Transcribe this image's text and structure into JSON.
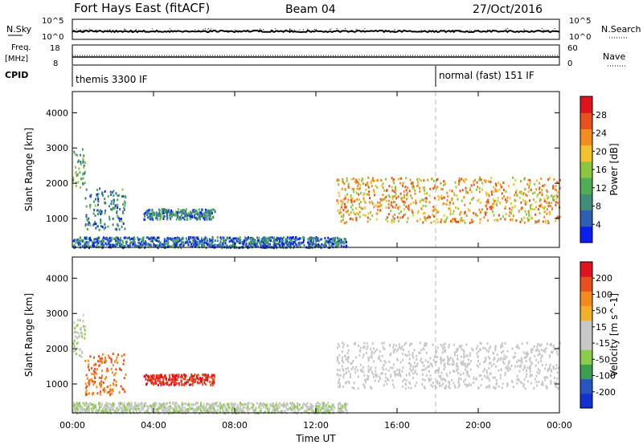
{
  "header": {
    "station": "Fort Hays East (fitACF)",
    "beam": "Beam 04",
    "date": "27/Oct/2016"
  },
  "noise_panel": {
    "left_label": "N.Sky",
    "right_label": "N.Search",
    "tick_top_left": "10^5",
    "tick_bottom_left": "10^0",
    "tick_top_right": "10^5",
    "tick_bottom_right": "10^0"
  },
  "freq_panel": {
    "left_label_1": "Freq.",
    "left_label_2": "[MHz]",
    "right_label": "Nave",
    "left_ticks": [
      "18",
      "8"
    ],
    "right_ticks": [
      "60",
      "0"
    ]
  },
  "cpid_panel": {
    "label": "CPID",
    "mode_1": "themis 3300 IF",
    "mode_2": "normal (fast) 151 IF"
  },
  "colors": {
    "power_scale": [
      "#0a1ef0",
      "#2f5fb3",
      "#3e8e7a",
      "#4fae55",
      "#8cc63f",
      "#f2c12e",
      "#f28c1e",
      "#e8501e",
      "#e0121e"
    ],
    "velocity_scale": [
      "#1430d0",
      "#2a55c0",
      "#3aa050",
      "#8ccc4a",
      "#c8c8c8",
      "#c8c8c8",
      "#f2b02a",
      "#f28a1e",
      "#e8501e",
      "#e0121e"
    ]
  },
  "chart_data": [
    {
      "type": "heatmap",
      "title": "Power",
      "xlabel": "",
      "ylabel": "Slant Range [km]",
      "xlim": [
        "00:00",
        "00:00"
      ],
      "ylim": [
        180,
        4600
      ],
      "x_ticks": [
        "00:00",
        "04:00",
        "08:00",
        "12:00",
        "16:00",
        "20:00",
        "00:00"
      ],
      "y_ticks": [
        "1000",
        "2000",
        "3000",
        "4000"
      ],
      "colorbar": {
        "label": "Power [dB]",
        "ticks": [
          "28",
          "24",
          "20",
          "16",
          "12",
          "8",
          "4"
        ],
        "range": [
          0,
          30
        ]
      },
      "features": [
        {
          "from_hour": 0.0,
          "to_hour": 0.6,
          "range_from": 1800,
          "range_to": 3000,
          "value": 12
        },
        {
          "from_hour": 0.6,
          "to_hour": 2.6,
          "range_from": 700,
          "range_to": 1900,
          "value": 8
        },
        {
          "from_hour": 3.5,
          "to_hour": 7.0,
          "range_from": 1000,
          "range_to": 1300,
          "value": 8
        },
        {
          "from_hour": 0.0,
          "to_hour": 13.5,
          "range_from": 200,
          "range_to": 500,
          "value": 6
        },
        {
          "from_hour": 13.0,
          "to_hour": 24.0,
          "range_from": 900,
          "range_to": 2200,
          "value": 20
        }
      ]
    },
    {
      "type": "heatmap",
      "title": "Velocity",
      "xlabel": "Time UT",
      "ylabel": "Slant Range [km]",
      "xlim": [
        "00:00",
        "00:00"
      ],
      "ylim": [
        180,
        4600
      ],
      "x_ticks": [
        "00:00",
        "04:00",
        "08:00",
        "12:00",
        "16:00",
        "20:00",
        "00:00"
      ],
      "y_ticks": [
        "1000",
        "2000",
        "3000",
        "4000"
      ],
      "colorbar": {
        "label": "Velocity [m s^-1]",
        "ticks": [
          "200",
          "100",
          "50",
          "15",
          "-15",
          "-50",
          "-100",
          "-200"
        ],
        "range": [
          -250,
          250
        ]
      },
      "features": [
        {
          "from_hour": 0.0,
          "to_hour": 0.6,
          "range_from": 1800,
          "range_to": 3000,
          "value": -40
        },
        {
          "from_hour": 0.6,
          "to_hour": 2.6,
          "range_from": 700,
          "range_to": 1900,
          "value": 150
        },
        {
          "from_hour": 3.5,
          "to_hour": 7.0,
          "range_from": 1000,
          "range_to": 1300,
          "value": 200
        },
        {
          "from_hour": 0.0,
          "to_hour": 13.5,
          "range_from": 200,
          "range_to": 500,
          "value": -40
        },
        {
          "from_hour": 13.0,
          "to_hour": 24.0,
          "range_from": 900,
          "range_to": 2200,
          "value": 0
        }
      ]
    }
  ]
}
